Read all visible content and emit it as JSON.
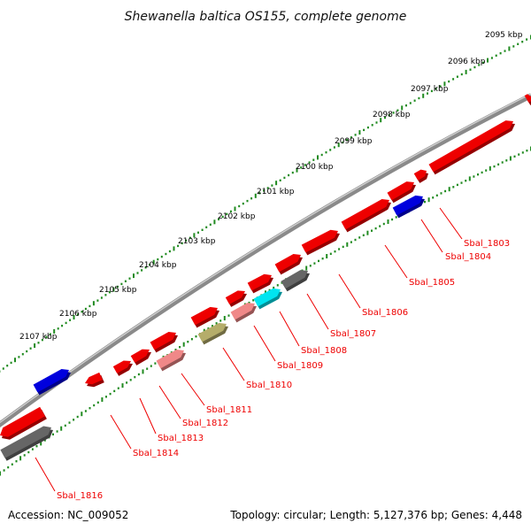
{
  "title": "Shewanella baltica OS155, complete genome",
  "footer": {
    "accession": "Accession: NC_009052",
    "summary": "Topology: circular; Length: 5,127,376 bp; Genes: 4,448"
  },
  "colors": {
    "backbone": "#8a8a8a",
    "backbone_highlight": "#cfcfcf",
    "ticks": "#1f8a1f",
    "label_line": "#ee0000",
    "label_text": "#ee0000"
  },
  "scale_labels": [
    "2095 kbp",
    "2096 kbp",
    "2097 kbp",
    "2098 kbp",
    "2099 kbp",
    "2100 kbp",
    "2101 kbp",
    "2102 kbp",
    "2103 kbp",
    "2104 kbp",
    "2105 kbp",
    "2106 kbp",
    "2107 kbp"
  ],
  "genes": [
    {
      "label": "Sbal_1803",
      "color": "#ee0000"
    },
    {
      "label": "Sbal_1804",
      "color": "#0000dd"
    },
    {
      "label": "Sbal_1805",
      "color": "#ee0000"
    },
    {
      "label": "Sbal_1806",
      "color": "#ee0000"
    },
    {
      "label": "Sbal_1807",
      "color": "#666666"
    },
    {
      "label": "Sbal_1808",
      "color": "#00e5f0"
    },
    {
      "label": "Sbal_1809",
      "color": "#f08888"
    },
    {
      "label": "Sbal_1810",
      "color": "#b5ad6a"
    },
    {
      "label": "Sbal_1811",
      "color": "#f08888"
    },
    {
      "label": "Sbal_1812",
      "color": "#ee0000"
    },
    {
      "label": "Sbal_1813",
      "color": "#ee0000"
    },
    {
      "label": "Sbal_1814",
      "color": "#ee0000"
    },
    {
      "label": "Sbal_1816",
      "color": "#666666"
    }
  ]
}
